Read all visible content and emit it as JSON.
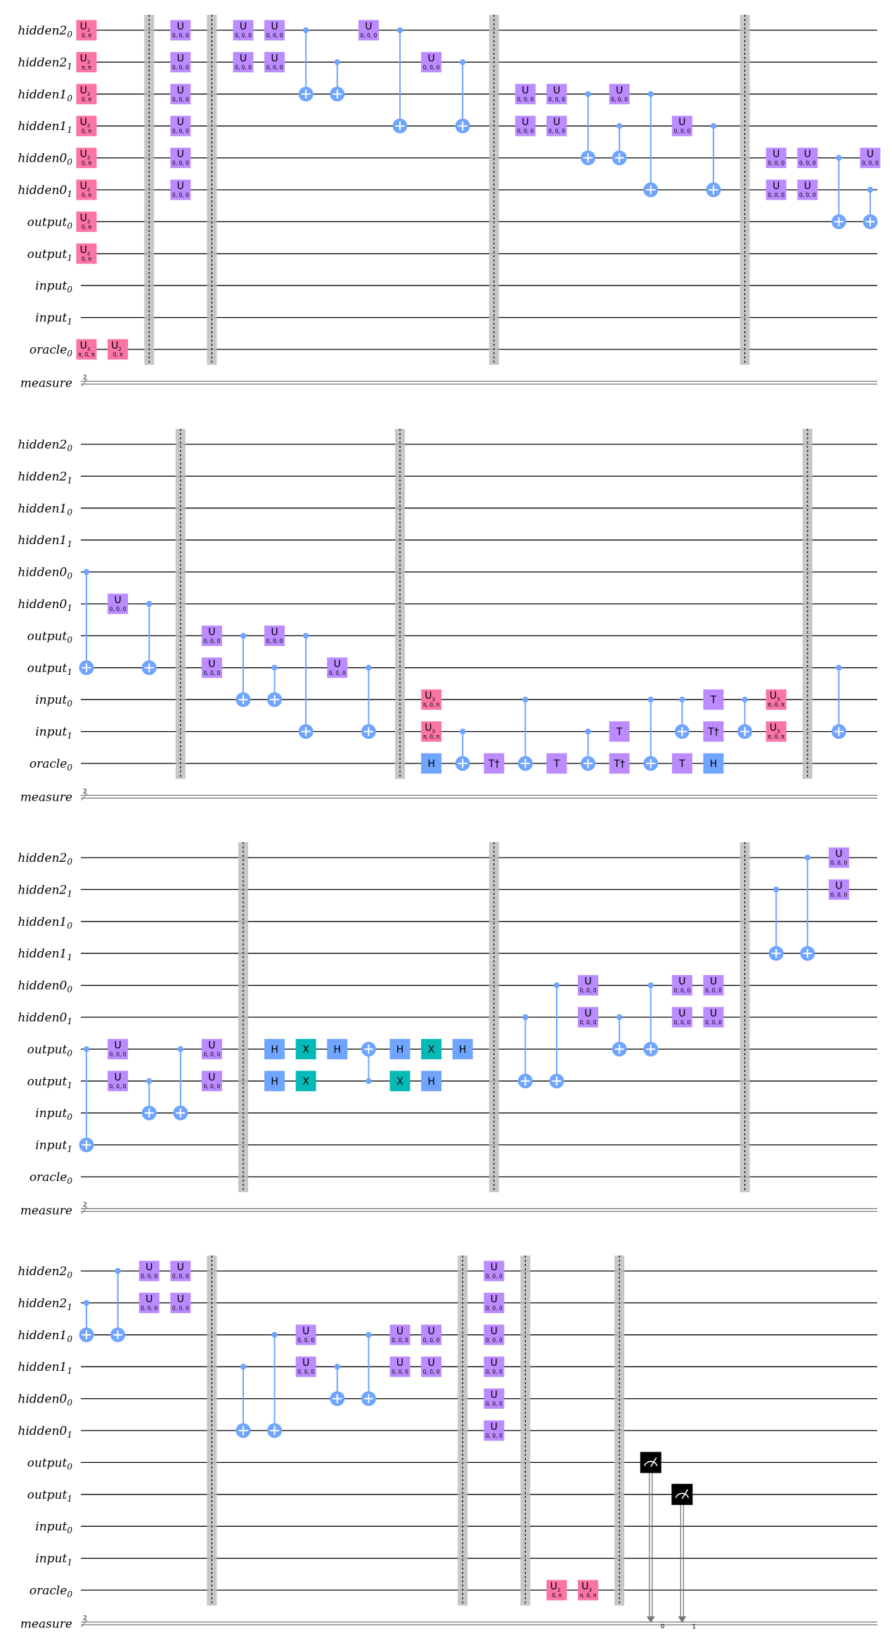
{
  "qubit_labels": [
    {
      "base": "hidden2",
      "sub": "0"
    },
    {
      "base": "hidden2",
      "sub": "1"
    },
    {
      "base": "hidden1",
      "sub": "0"
    },
    {
      "base": "hidden1",
      "sub": "1"
    },
    {
      "base": "hidden0",
      "sub": "0"
    },
    {
      "base": "hidden0",
      "sub": "1"
    },
    {
      "base": "output",
      "sub": "0"
    },
    {
      "base": "output",
      "sub": "1"
    },
    {
      "base": "input",
      "sub": "0"
    },
    {
      "base": "input",
      "sub": "1"
    },
    {
      "base": "oracle",
      "sub": "0"
    }
  ],
  "classical_label": "measure",
  "classical_width": "2",
  "colors": {
    "u2": "#FA74A6",
    "u3": "#FA74A6",
    "u": "#BB8BFF",
    "h": "#6FA4FF",
    "x": "#05BAB6",
    "t": "#BB8BFF",
    "control": "#6FA4FF",
    "measure": "#000000",
    "barrier": "#BDBDBD"
  },
  "gate_text": {
    "u2": {
      "name": "U",
      "sub": "2"
    },
    "u3": {
      "name": "U",
      "sub": "3"
    },
    "u": {
      "name": "U"
    },
    "h": {
      "name": "H"
    },
    "x": {
      "name": "X"
    },
    "t": {
      "name": "T"
    },
    "tdg": {
      "name": "T†"
    }
  },
  "panels": [
    {
      "ops": [
        {
          "t": "u2",
          "q": 0,
          "col": 0,
          "p": "0, π"
        },
        {
          "t": "u2",
          "q": 1,
          "col": 0,
          "p": "π, π"
        },
        {
          "t": "u2",
          "q": 2,
          "col": 0,
          "p": "0, π"
        },
        {
          "t": "u2",
          "q": 3,
          "col": 0,
          "p": "0, π"
        },
        {
          "t": "u2",
          "q": 4,
          "col": 0,
          "p": "0, π"
        },
        {
          "t": "u2",
          "q": 5,
          "col": 0,
          "p": "0, π"
        },
        {
          "t": "u2",
          "q": 6,
          "col": 0,
          "p": "0, π"
        },
        {
          "t": "u2",
          "q": 7,
          "col": 0,
          "p": "0, π"
        },
        {
          "t": "u3",
          "q": 10,
          "col": 0,
          "p": "π, 0, π"
        },
        {
          "t": "u2",
          "q": 10,
          "col": 1,
          "p": "0, π"
        },
        {
          "t": "barrier",
          "col": 2
        },
        {
          "t": "u",
          "q": 0,
          "col": 3,
          "p": "0, 0, 0"
        },
        {
          "t": "u",
          "q": 1,
          "col": 3,
          "p": "0, 0, 0"
        },
        {
          "t": "u",
          "q": 2,
          "col": 3,
          "p": "0, 0, 0"
        },
        {
          "t": "u",
          "q": 3,
          "col": 3,
          "p": "0, 0, 0"
        },
        {
          "t": "u",
          "q": 4,
          "col": 3,
          "p": "0, 0, 0"
        },
        {
          "t": "u",
          "q": 5,
          "col": 3,
          "p": "0, 0, 0"
        },
        {
          "t": "barrier",
          "col": 4
        },
        {
          "t": "u",
          "q": 0,
          "col": 5,
          "p": "0, 0, 0"
        },
        {
          "t": "u",
          "q": 1,
          "col": 5,
          "p": "0, 0, 0"
        },
        {
          "t": "u",
          "q": 0,
          "col": 6,
          "p": "0, 0, 0"
        },
        {
          "t": "u",
          "q": 1,
          "col": 6,
          "p": "0, 0, 0"
        },
        {
          "t": "cx",
          "c": 0,
          "q": 2,
          "col": 7
        },
        {
          "t": "cx",
          "c": 1,
          "q": 2,
          "col": 8
        },
        {
          "t": "u",
          "q": 0,
          "col": 9,
          "p": "0, 0, 0"
        },
        {
          "t": "cx",
          "c": 0,
          "q": 3,
          "col": 10
        },
        {
          "t": "u",
          "q": 1,
          "col": 11,
          "p": "0, 0, 0"
        },
        {
          "t": "cx",
          "c": 1,
          "q": 3,
          "col": 12
        },
        {
          "t": "barrier",
          "col": 13
        },
        {
          "t": "u",
          "q": 2,
          "col": 14,
          "p": "0, 0, 0"
        },
        {
          "t": "u",
          "q": 3,
          "col": 14,
          "p": "0, 0, 0"
        },
        {
          "t": "u",
          "q": 2,
          "col": 15,
          "p": "0, 0, 0"
        },
        {
          "t": "u",
          "q": 3,
          "col": 15,
          "p": "0, 0, 0"
        },
        {
          "t": "cx",
          "c": 2,
          "q": 4,
          "col": 16
        },
        {
          "t": "cx",
          "c": 3,
          "q": 4,
          "col": 17
        },
        {
          "t": "u",
          "q": 2,
          "col": 17,
          "p": "0, 0, 0"
        },
        {
          "t": "cx",
          "c": 2,
          "q": 5,
          "col": 18
        },
        {
          "t": "u",
          "q": 3,
          "col": 19,
          "p": "0, 0, 0"
        },
        {
          "t": "cx",
          "c": 3,
          "q": 5,
          "col": 20
        },
        {
          "t": "barrier",
          "col": 21
        },
        {
          "t": "u",
          "q": 4,
          "col": 22,
          "p": "0, 0, 0"
        },
        {
          "t": "u",
          "q": 5,
          "col": 22,
          "p": "0, 0, 0"
        },
        {
          "t": "u",
          "q": 4,
          "col": 23,
          "p": "0, 0, 0"
        },
        {
          "t": "u",
          "q": 5,
          "col": 23,
          "p": "0, 0, 0"
        },
        {
          "t": "cx",
          "c": 4,
          "q": 6,
          "col": 24
        },
        {
          "t": "cx",
          "c": 5,
          "q": 6,
          "col": 25
        },
        {
          "t": "u",
          "q": 4,
          "col": 25,
          "p": "0, 0, 0"
        }
      ]
    },
    {
      "ops": [
        {
          "t": "cx",
          "c": 4,
          "q": 7,
          "col": 0
        },
        {
          "t": "u",
          "q": 5,
          "col": 1,
          "p": "0, 0, 0"
        },
        {
          "t": "cx",
          "c": 5,
          "q": 7,
          "col": 2
        },
        {
          "t": "barrier",
          "col": 3
        },
        {
          "t": "u",
          "q": 6,
          "col": 4,
          "p": "0, 0, 0"
        },
        {
          "t": "u",
          "q": 7,
          "col": 4,
          "p": "0, 0, 0"
        },
        {
          "t": "cx",
          "c": 6,
          "q": 8,
          "col": 5
        },
        {
          "t": "cx",
          "c": 7,
          "q": 8,
          "col": 6
        },
        {
          "t": "u",
          "q": 6,
          "col": 6,
          "p": "0, 0, 0"
        },
        {
          "t": "cx",
          "c": 6,
          "q": 9,
          "col": 7
        },
        {
          "t": "u",
          "q": 7,
          "col": 8,
          "p": "0, 0, 0"
        },
        {
          "t": "cx",
          "c": 7,
          "q": 9,
          "col": 9
        },
        {
          "t": "barrier",
          "col": 10
        },
        {
          "t": "u3",
          "q": 8,
          "col": 11,
          "p": "π, 0, π"
        },
        {
          "t": "u3",
          "q": 9,
          "col": 11,
          "p": "π, 0, π"
        },
        {
          "t": "h",
          "q": 10,
          "col": 11
        },
        {
          "t": "cx",
          "c": 9,
          "q": 10,
          "col": 12
        },
        {
          "t": "tdg",
          "q": 10,
          "col": 13
        },
        {
          "t": "cx",
          "c": 8,
          "q": 10,
          "col": 14
        },
        {
          "t": "t",
          "q": 10,
          "col": 15
        },
        {
          "t": "cx",
          "c": 9,
          "q": 10,
          "col": 16
        },
        {
          "t": "t",
          "q": 9,
          "col": 17
        },
        {
          "t": "tdg",
          "q": 10,
          "col": 17
        },
        {
          "t": "cx",
          "c": 8,
          "q": 10,
          "col": 18
        },
        {
          "t": "cx",
          "c": 8,
          "q": 9,
          "col": 19
        },
        {
          "t": "t",
          "q": 10,
          "col": 19
        },
        {
          "t": "t",
          "q": 8,
          "col": 20
        },
        {
          "t": "tdg",
          "q": 9,
          "col": 20
        },
        {
          "t": "h",
          "q": 10,
          "col": 20
        },
        {
          "t": "cx",
          "c": 8,
          "q": 9,
          "col": 21
        },
        {
          "t": "u3",
          "q": 8,
          "col": 22,
          "p": "π, 0, π"
        },
        {
          "t": "u3",
          "q": 9,
          "col": 22,
          "p": "π, 0, π"
        },
        {
          "t": "barrier",
          "col": 23
        },
        {
          "t": "cx",
          "c": 7,
          "q": 9,
          "col": 24
        }
      ]
    },
    {
      "ops": [
        {
          "t": "cx",
          "c": 6,
          "q": 9,
          "col": 0
        },
        {
          "t": "u",
          "q": 6,
          "col": 1,
          "p": "0, 0, 0"
        },
        {
          "t": "u",
          "q": 7,
          "col": 1,
          "p": "0, 0, 0"
        },
        {
          "t": "cx",
          "c": 7,
          "q": 8,
          "col": 2
        },
        {
          "t": "cx",
          "c": 6,
          "q": 8,
          "col": 3
        },
        {
          "t": "u",
          "q": 6,
          "col": 4,
          "p": "0, 0, 0"
        },
        {
          "t": "u",
          "q": 7,
          "col": 4,
          "p": "0, 0, 0"
        },
        {
          "t": "barrier",
          "col": 5
        },
        {
          "t": "h",
          "q": 6,
          "col": 6
        },
        {
          "t": "h",
          "q": 7,
          "col": 6
        },
        {
          "t": "x",
          "q": 6,
          "col": 7
        },
        {
          "t": "x",
          "q": 7,
          "col": 7
        },
        {
          "t": "h",
          "q": 6,
          "col": 8
        },
        {
          "t": "cx",
          "c": 7,
          "q": 6,
          "col": 9
        },
        {
          "t": "h",
          "q": 6,
          "col": 10
        },
        {
          "t": "x",
          "q": 7,
          "col": 10
        },
        {
          "t": "x",
          "q": 6,
          "col": 11
        },
        {
          "t": "h",
          "q": 7,
          "col": 11
        },
        {
          "t": "h",
          "q": 6,
          "col": 12
        },
        {
          "t": "barrier",
          "col": 13
        },
        {
          "t": "cx",
          "c": 5,
          "q": 7,
          "col": 14
        },
        {
          "t": "cx",
          "c": 4,
          "q": 7,
          "col": 15
        },
        {
          "t": "u",
          "q": 4,
          "col": 16,
          "p": "0, 0, 0"
        },
        {
          "t": "u",
          "q": 5,
          "col": 16,
          "p": "0, 0, 0"
        },
        {
          "t": "cx",
          "c": 5,
          "q": 6,
          "col": 17
        },
        {
          "t": "cx",
          "c": 4,
          "q": 6,
          "col": 18
        },
        {
          "t": "u",
          "q": 4,
          "col": 19,
          "p": "0, 0, 0"
        },
        {
          "t": "u",
          "q": 5,
          "col": 19,
          "p": "0, 0, 0"
        },
        {
          "t": "u",
          "q": 4,
          "col": 20,
          "p": "0, 0, 0"
        },
        {
          "t": "u",
          "q": 5,
          "col": 20,
          "p": "0, 0, 0"
        },
        {
          "t": "barrier",
          "col": 21
        },
        {
          "t": "cx",
          "c": 1,
          "q": 3,
          "col": 22
        },
        {
          "t": "cx",
          "c": 0,
          "q": 3,
          "col": 23
        },
        {
          "t": "u",
          "q": 0,
          "col": 24,
          "p": "0, 0, 0"
        },
        {
          "t": "u",
          "q": 1,
          "col": 24,
          "p": "0, 0, 0"
        }
      ]
    },
    {
      "ops": [
        {
          "t": "cx",
          "c": 1,
          "q": 2,
          "col": 0
        },
        {
          "t": "cx",
          "c": 0,
          "q": 2,
          "col": 1
        },
        {
          "t": "u",
          "q": 0,
          "col": 2,
          "p": "0, 0, 0"
        },
        {
          "t": "u",
          "q": 1,
          "col": 2,
          "p": "0, 0, 0"
        },
        {
          "t": "u",
          "q": 0,
          "col": 3,
          "p": "0, 0, 0"
        },
        {
          "t": "u",
          "q": 1,
          "col": 3,
          "p": "0, 0, 0"
        },
        {
          "t": "barrier",
          "col": 4
        },
        {
          "t": "cx",
          "c": 3,
          "q": 5,
          "col": 5
        },
        {
          "t": "cx",
          "c": 2,
          "q": 5,
          "col": 6
        },
        {
          "t": "u",
          "q": 2,
          "col": 7,
          "p": "0, 0, 0"
        },
        {
          "t": "u",
          "q": 3,
          "col": 7,
          "p": "0, 0, 0"
        },
        {
          "t": "cx",
          "c": 3,
          "q": 4,
          "col": 8
        },
        {
          "t": "cx",
          "c": 2,
          "q": 4,
          "col": 9
        },
        {
          "t": "u",
          "q": 2,
          "col": 10,
          "p": "0, 0, 0"
        },
        {
          "t": "u",
          "q": 3,
          "col": 10,
          "p": "0, 0, 0"
        },
        {
          "t": "u",
          "q": 2,
          "col": 11,
          "p": "0, 0, 0"
        },
        {
          "t": "u",
          "q": 3,
          "col": 11,
          "p": "0, 0, 0"
        },
        {
          "t": "barrier",
          "col": 12
        },
        {
          "t": "u",
          "q": 0,
          "col": 13,
          "p": "0, 0, 0"
        },
        {
          "t": "u",
          "q": 1,
          "col": 13,
          "p": "0, 0, 0"
        },
        {
          "t": "u",
          "q": 2,
          "col": 13,
          "p": "0, 0, 0"
        },
        {
          "t": "u",
          "q": 3,
          "col": 13,
          "p": "0, 0, 0"
        },
        {
          "t": "u",
          "q": 4,
          "col": 13,
          "p": "0, 0, 0"
        },
        {
          "t": "u",
          "q": 5,
          "col": 13,
          "p": "0, 0, 0"
        },
        {
          "t": "barrier",
          "col": 14
        },
        {
          "t": "u2",
          "q": 10,
          "col": 15,
          "p": "0, π"
        },
        {
          "t": "u3",
          "q": 10,
          "col": 16,
          "p": "π, 0, π"
        },
        {
          "t": "barrier",
          "col": 17
        },
        {
          "t": "measure",
          "q": 6,
          "col": 18,
          "bit": "0"
        },
        {
          "t": "measure",
          "q": 7,
          "col": 19,
          "bit": "1"
        }
      ]
    }
  ]
}
